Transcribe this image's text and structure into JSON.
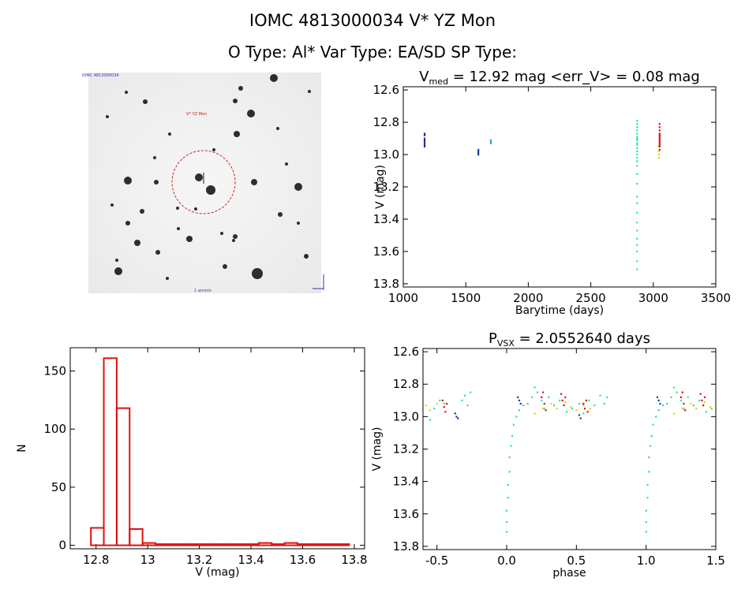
{
  "header": {
    "title_line1": "IOMC 4813000034    V* YZ Mon",
    "title_line2": "O Type: Al*  Var Type: EA/SD  SP Type:"
  },
  "finder_chart": {
    "top_left_label": "IOMC 4813000034",
    "target_label": "V* YZ Mon",
    "bottom_label": "1 arcmin"
  },
  "chart_data": [
    {
      "id": "lightcurve",
      "type": "scatter",
      "title_parts": {
        "v": "V",
        "sub": "med",
        "rest": " = 12.92 mag <err_V> = 0.08 mag"
      },
      "xlabel": "Barytime (days)",
      "ylabel": "V (mag)",
      "xlim": [
        1000,
        3500
      ],
      "ylim": [
        13.82,
        12.58
      ],
      "xticks": [
        1000,
        1500,
        2000,
        2500,
        3000,
        3500
      ],
      "yticks": [
        12.6,
        12.8,
        13.0,
        13.2,
        13.4,
        13.6,
        13.8
      ],
      "series": [
        {
          "name": "t1170",
          "color": "#3a1f8a",
          "x": [
            1170,
            1170,
            1170,
            1170,
            1170,
            1170,
            1170,
            1170
          ],
          "y": [
            12.87,
            12.88,
            12.9,
            12.91,
            12.92,
            12.93,
            12.94,
            12.95
          ]
        },
        {
          "name": "t1600",
          "color": "#1a3fa0",
          "x": [
            1600,
            1600,
            1600,
            1600
          ],
          "y": [
            12.97,
            12.98,
            12.99,
            13.0
          ]
        },
        {
          "name": "t1700",
          "color": "#22a8d8",
          "x": [
            1700,
            1700,
            1700
          ],
          "y": [
            12.91,
            12.92,
            12.93
          ]
        },
        {
          "name": "t2870",
          "color": "#2de39a",
          "x": [
            2870,
            2870,
            2870,
            2870,
            2870,
            2870,
            2870,
            2870,
            2870,
            2870,
            2870,
            2870,
            2870,
            2870,
            2870,
            2870,
            2870,
            2870,
            2870,
            2870,
            2870,
            2870,
            2870,
            2870,
            2870,
            2870,
            2870,
            2870
          ],
          "y": [
            12.79,
            12.81,
            12.83,
            12.85,
            12.87,
            12.89,
            12.9,
            12.91,
            12.93,
            12.94,
            12.96,
            12.98,
            13.0,
            13.02,
            13.04,
            13.07,
            13.12,
            13.18,
            13.26,
            13.3,
            13.36,
            13.42,
            13.47,
            13.52,
            13.56,
            13.6,
            13.66,
            13.71
          ]
        },
        {
          "name": "t3040y",
          "color": "#e5d21a",
          "x": [
            3045,
            3045,
            3045,
            3045
          ],
          "y": [
            12.95,
            12.98,
            13.0,
            13.02
          ]
        },
        {
          "name": "t3050",
          "color": "#e01010",
          "x": [
            3050,
            3050,
            3050,
            3050,
            3050,
            3050,
            3050,
            3050,
            3050,
            3050,
            3050,
            3050,
            3050
          ],
          "y": [
            12.81,
            12.83,
            12.85,
            12.87,
            12.88,
            12.89,
            12.9,
            12.91,
            12.92,
            12.93,
            12.94,
            12.95,
            12.97
          ]
        }
      ]
    },
    {
      "id": "histogram",
      "type": "bar",
      "title": "",
      "xlabel": "V (mag)",
      "ylabel": "N",
      "xlim": [
        12.7,
        13.84
      ],
      "ylim": [
        -3,
        170
      ],
      "xticks": [
        12.8,
        13.0,
        13.2,
        13.4,
        13.6,
        13.8
      ],
      "yticks": [
        0,
        50,
        100,
        150
      ],
      "bin_edges": [
        12.78,
        12.83,
        12.88,
        12.93,
        12.98,
        13.03,
        13.08,
        13.13,
        13.18,
        13.23,
        13.28,
        13.33,
        13.38,
        13.43,
        13.48,
        13.53,
        13.58,
        13.63,
        13.68,
        13.73,
        13.78
      ],
      "values": [
        15,
        161,
        118,
        14,
        2,
        1,
        1,
        1,
        1,
        1,
        1,
        1,
        1,
        2,
        1,
        2,
        1,
        1,
        1,
        1
      ]
    },
    {
      "id": "phased",
      "type": "scatter",
      "title_parts": {
        "v": "P",
        "sub": "VSX",
        "rest": " = 2.0552640 days"
      },
      "xlabel": "phase",
      "ylabel": "V (mag)",
      "xlim": [
        -0.6,
        1.5
      ],
      "ylim": [
        13.82,
        12.58
      ],
      "xticks": [
        -0.5,
        0.0,
        0.5,
        1.0,
        1.5
      ],
      "yticks": [
        12.6,
        12.8,
        13.0,
        13.2,
        13.4,
        13.6,
        13.8
      ],
      "series": [
        {
          "name": "green",
          "color": "#2de39a",
          "x": [
            -0.55,
            -0.52,
            -0.48,
            -0.45,
            -0.32,
            -0.3,
            -0.28,
            -0.26,
            0.0,
            0.0,
            0.0,
            0.01,
            0.01,
            0.02,
            0.02,
            0.03,
            0.04,
            0.05,
            0.07,
            0.09,
            0.12,
            0.15,
            0.18,
            0.2,
            0.22,
            0.25,
            0.27,
            0.3,
            0.34,
            0.38,
            0.43,
            0.47,
            0.52,
            0.55,
            0.59,
            0.63,
            0.67,
            0.7,
            0.72,
            1.0,
            1.0,
            1.0,
            1.01,
            1.01,
            1.02,
            1.02,
            1.03,
            1.04,
            1.05,
            1.07,
            1.09,
            1.12,
            1.15,
            1.18,
            1.2,
            1.22,
            1.25,
            1.27,
            1.3,
            1.34,
            1.38,
            1.43,
            1.47
          ],
          "y": [
            13.02,
            12.95,
            12.9,
            12.92,
            12.9,
            12.87,
            12.93,
            12.85,
            13.71,
            13.65,
            13.58,
            13.5,
            13.42,
            13.34,
            13.25,
            13.18,
            13.12,
            13.05,
            13.0,
            12.96,
            12.93,
            12.92,
            12.88,
            12.82,
            12.85,
            12.9,
            12.95,
            12.88,
            12.93,
            12.9,
            12.97,
            12.95,
            12.92,
            12.98,
            12.9,
            12.93,
            12.87,
            12.92,
            12.88,
            13.71,
            13.65,
            13.58,
            13.5,
            13.42,
            13.34,
            13.25,
            13.18,
            13.12,
            13.05,
            13.0,
            12.96,
            12.93,
            12.92,
            12.88,
            12.82,
            12.85,
            12.9,
            12.95,
            12.88,
            12.93,
            12.9,
            12.97,
            12.95
          ]
        },
        {
          "name": "yellow",
          "color": "#e5d21a",
          "x": [
            -0.58,
            -0.55,
            -0.5,
            0.2,
            0.26,
            0.32,
            0.36,
            0.42,
            0.46,
            0.5,
            0.55,
            0.6,
            1.2,
            1.26,
            1.32,
            1.36,
            1.42,
            1.46
          ],
          "y": [
            12.93,
            12.96,
            12.92,
            12.98,
            12.95,
            12.92,
            12.95,
            12.91,
            12.94,
            12.96,
            12.93,
            12.95,
            12.98,
            12.95,
            12.92,
            12.95,
            12.91,
            12.94
          ]
        },
        {
          "name": "red",
          "color": "#e01010",
          "x": [
            -0.46,
            -0.45,
            -0.44,
            -0.43,
            0.25,
            0.26,
            0.27,
            0.28,
            0.39,
            0.4,
            0.41,
            0.42,
            0.55,
            0.56,
            0.57,
            0.58,
            1.25,
            1.26,
            1.27,
            1.28,
            1.39,
            1.4,
            1.41,
            1.42
          ],
          "y": [
            12.9,
            12.94,
            12.97,
            12.92,
            12.88,
            12.85,
            12.92,
            12.96,
            12.86,
            12.9,
            12.93,
            12.88,
            12.92,
            12.95,
            12.9,
            12.97,
            12.88,
            12.85,
            12.92,
            12.96,
            12.86,
            12.9,
            12.93,
            12.88
          ]
        },
        {
          "name": "blue",
          "color": "#1a3fa0",
          "x": [
            -0.37,
            -0.36,
            -0.35,
            0.08,
            0.09,
            0.1,
            0.52,
            0.53,
            1.08,
            1.09,
            1.1
          ],
          "y": [
            12.98,
            13.0,
            13.01,
            12.88,
            12.9,
            12.92,
            12.99,
            13.01,
            12.88,
            12.9,
            12.92
          ]
        }
      ]
    }
  ]
}
